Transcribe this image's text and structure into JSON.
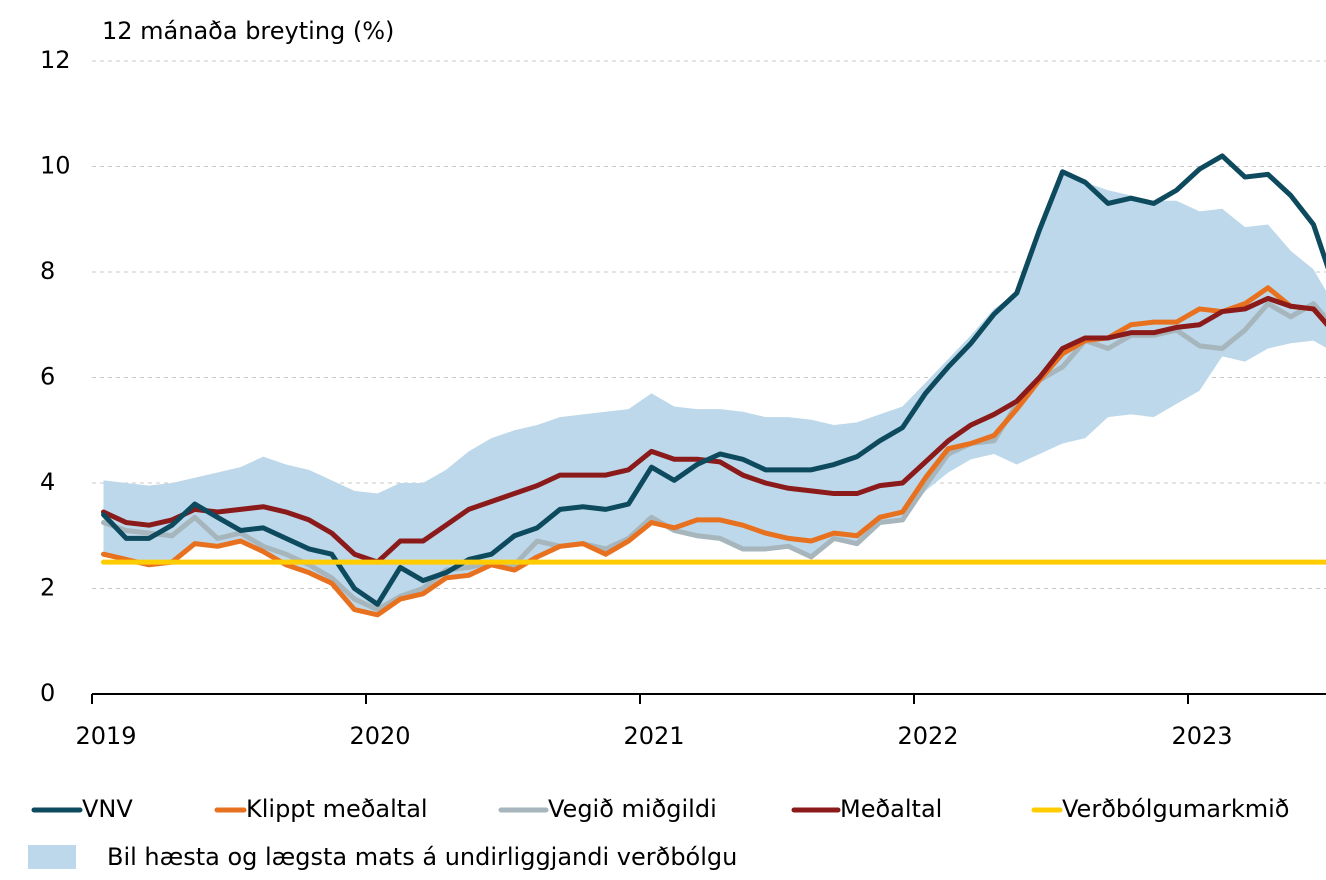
{
  "chart_data": {
    "type": "line",
    "title": "12 mánaða breyting (%)",
    "x": [
      2019.042,
      2019.125,
      2019.208,
      2019.292,
      2019.375,
      2019.458,
      2019.542,
      2019.625,
      2019.708,
      2019.792,
      2019.875,
      2019.958,
      2020.042,
      2020.125,
      2020.208,
      2020.292,
      2020.375,
      2020.458,
      2020.542,
      2020.625,
      2020.708,
      2020.792,
      2020.875,
      2020.958,
      2021.042,
      2021.125,
      2021.208,
      2021.292,
      2021.375,
      2021.458,
      2021.542,
      2021.625,
      2021.708,
      2021.792,
      2021.875,
      2021.958,
      2022.042,
      2022.125,
      2022.208,
      2022.292,
      2022.375,
      2022.458,
      2022.542,
      2022.625,
      2022.708,
      2022.792,
      2022.875,
      2022.958,
      2023.042,
      2023.125,
      2023.208,
      2023.292,
      2023.375,
      2023.458,
      2023.542
    ],
    "xlim": [
      2019,
      2023.5
    ],
    "xticks": [
      2019,
      2020,
      2021,
      2022,
      2023
    ],
    "ylim": [
      0,
      12
    ],
    "yticks": [
      0,
      2,
      4,
      6,
      8,
      10,
      12
    ],
    "grid": true,
    "band": {
      "name": "Bil hæsta og lægsta mats á undirliggjandi verðbólgu",
      "color": "#bcd8ea",
      "upper": [
        4.05,
        4.0,
        3.95,
        4.0,
        4.1,
        4.2,
        4.3,
        4.5,
        4.35,
        4.25,
        4.05,
        3.85,
        3.8,
        4.0,
        4.0,
        4.25,
        4.6,
        4.85,
        5.0,
        5.1,
        5.25,
        5.3,
        5.35,
        5.4,
        5.7,
        5.45,
        5.4,
        5.4,
        5.35,
        5.25,
        5.25,
        5.2,
        5.1,
        5.15,
        5.3,
        5.45,
        5.9,
        6.35,
        6.8,
        7.3,
        7.6,
        8.85,
        9.95,
        9.7,
        9.55,
        9.45,
        9.35,
        9.35,
        9.15,
        9.2,
        8.85,
        8.9,
        8.4,
        8.05,
        7.3
      ],
      "lower": [
        2.6,
        2.55,
        2.45,
        2.5,
        2.85,
        2.8,
        2.85,
        2.7,
        2.45,
        2.3,
        2.1,
        1.6,
        1.5,
        1.8,
        1.9,
        2.2,
        2.25,
        2.4,
        2.35,
        2.6,
        2.8,
        2.85,
        2.65,
        2.9,
        3.25,
        3.1,
        3.0,
        2.95,
        2.75,
        2.75,
        2.8,
        2.6,
        2.95,
        2.85,
        3.25,
        3.3,
        3.85,
        4.2,
        4.45,
        4.55,
        4.35,
        4.55,
        4.75,
        4.85,
        5.25,
        5.3,
        5.25,
        5.5,
        5.75,
        6.4,
        6.3,
        6.55,
        6.65,
        6.7,
        6.45
      ]
    },
    "series": [
      {
        "name": "VNV",
        "color": "#0d4a5e",
        "values": [
          3.4,
          2.95,
          2.95,
          3.2,
          3.6,
          3.35,
          3.1,
          3.15,
          2.95,
          2.75,
          2.65,
          2.0,
          1.7,
          2.4,
          2.15,
          2.3,
          2.55,
          2.65,
          3.0,
          3.15,
          3.5,
          3.55,
          3.5,
          3.6,
          4.3,
          4.05,
          4.35,
          4.55,
          4.45,
          4.25,
          4.25,
          4.25,
          4.35,
          4.5,
          4.8,
          5.05,
          5.7,
          6.2,
          6.65,
          7.2,
          7.6,
          8.8,
          9.9,
          9.7,
          9.3,
          9.4,
          9.3,
          9.55,
          9.95,
          10.2,
          9.8,
          9.85,
          9.45,
          8.9,
          7.6
        ]
      },
      {
        "name": "Klippt meðaltal",
        "color": "#e8711f",
        "values": [
          2.65,
          2.55,
          2.45,
          2.5,
          2.85,
          2.8,
          2.9,
          2.7,
          2.45,
          2.3,
          2.1,
          1.6,
          1.5,
          1.8,
          1.9,
          2.2,
          2.25,
          2.45,
          2.35,
          2.6,
          2.8,
          2.85,
          2.65,
          2.9,
          3.25,
          3.15,
          3.3,
          3.3,
          3.2,
          3.05,
          2.95,
          2.9,
          3.05,
          3.0,
          3.35,
          3.45,
          4.1,
          4.65,
          4.75,
          4.9,
          5.4,
          5.95,
          6.45,
          6.7,
          6.75,
          7.0,
          7.05,
          7.05,
          7.3,
          7.25,
          7.4,
          7.7,
          7.35,
          7.3,
          6.8
        ]
      },
      {
        "name": "Vegið miðgildi",
        "color": "#a7b6bd",
        "values": [
          3.25,
          3.1,
          3.05,
          3.0,
          3.35,
          2.95,
          3.05,
          2.8,
          2.65,
          2.45,
          2.2,
          1.8,
          1.6,
          1.85,
          2.0,
          2.35,
          2.4,
          2.5,
          2.45,
          2.9,
          2.8,
          2.85,
          2.75,
          2.95,
          3.35,
          3.1,
          3.0,
          2.95,
          2.75,
          2.75,
          2.8,
          2.6,
          2.95,
          2.85,
          3.25,
          3.3,
          3.95,
          4.55,
          4.75,
          4.8,
          5.5,
          5.95,
          6.2,
          6.7,
          6.55,
          6.8,
          6.8,
          6.9,
          6.6,
          6.55,
          6.9,
          7.4,
          7.15,
          7.4,
          6.9
        ]
      },
      {
        "name": "Meðaltal",
        "color": "#8b1a1a",
        "values": [
          3.45,
          3.25,
          3.2,
          3.3,
          3.5,
          3.45,
          3.5,
          3.55,
          3.45,
          3.3,
          3.05,
          2.65,
          2.5,
          2.9,
          2.9,
          3.2,
          3.5,
          3.65,
          3.8,
          3.95,
          4.15,
          4.15,
          4.15,
          4.25,
          4.6,
          4.45,
          4.45,
          4.4,
          4.15,
          4.0,
          3.9,
          3.85,
          3.8,
          3.8,
          3.95,
          4.0,
          4.4,
          4.8,
          5.1,
          5.3,
          5.55,
          6.0,
          6.55,
          6.75,
          6.75,
          6.85,
          6.85,
          6.95,
          7.0,
          7.25,
          7.3,
          7.5,
          7.35,
          7.3,
          6.8
        ]
      },
      {
        "name": "Verðbólgumarkmið",
        "color": "#ffcc00",
        "values": [
          2.5,
          2.5,
          2.5,
          2.5,
          2.5,
          2.5,
          2.5,
          2.5,
          2.5,
          2.5,
          2.5,
          2.5,
          2.5,
          2.5,
          2.5,
          2.5,
          2.5,
          2.5,
          2.5,
          2.5,
          2.5,
          2.5,
          2.5,
          2.5,
          2.5,
          2.5,
          2.5,
          2.5,
          2.5,
          2.5,
          2.5,
          2.5,
          2.5,
          2.5,
          2.5,
          2.5,
          2.5,
          2.5,
          2.5,
          2.5,
          2.5,
          2.5,
          2.5,
          2.5,
          2.5,
          2.5,
          2.5,
          2.5,
          2.5,
          2.5,
          2.5,
          2.5,
          2.5,
          2.5,
          2.5
        ]
      }
    ]
  }
}
